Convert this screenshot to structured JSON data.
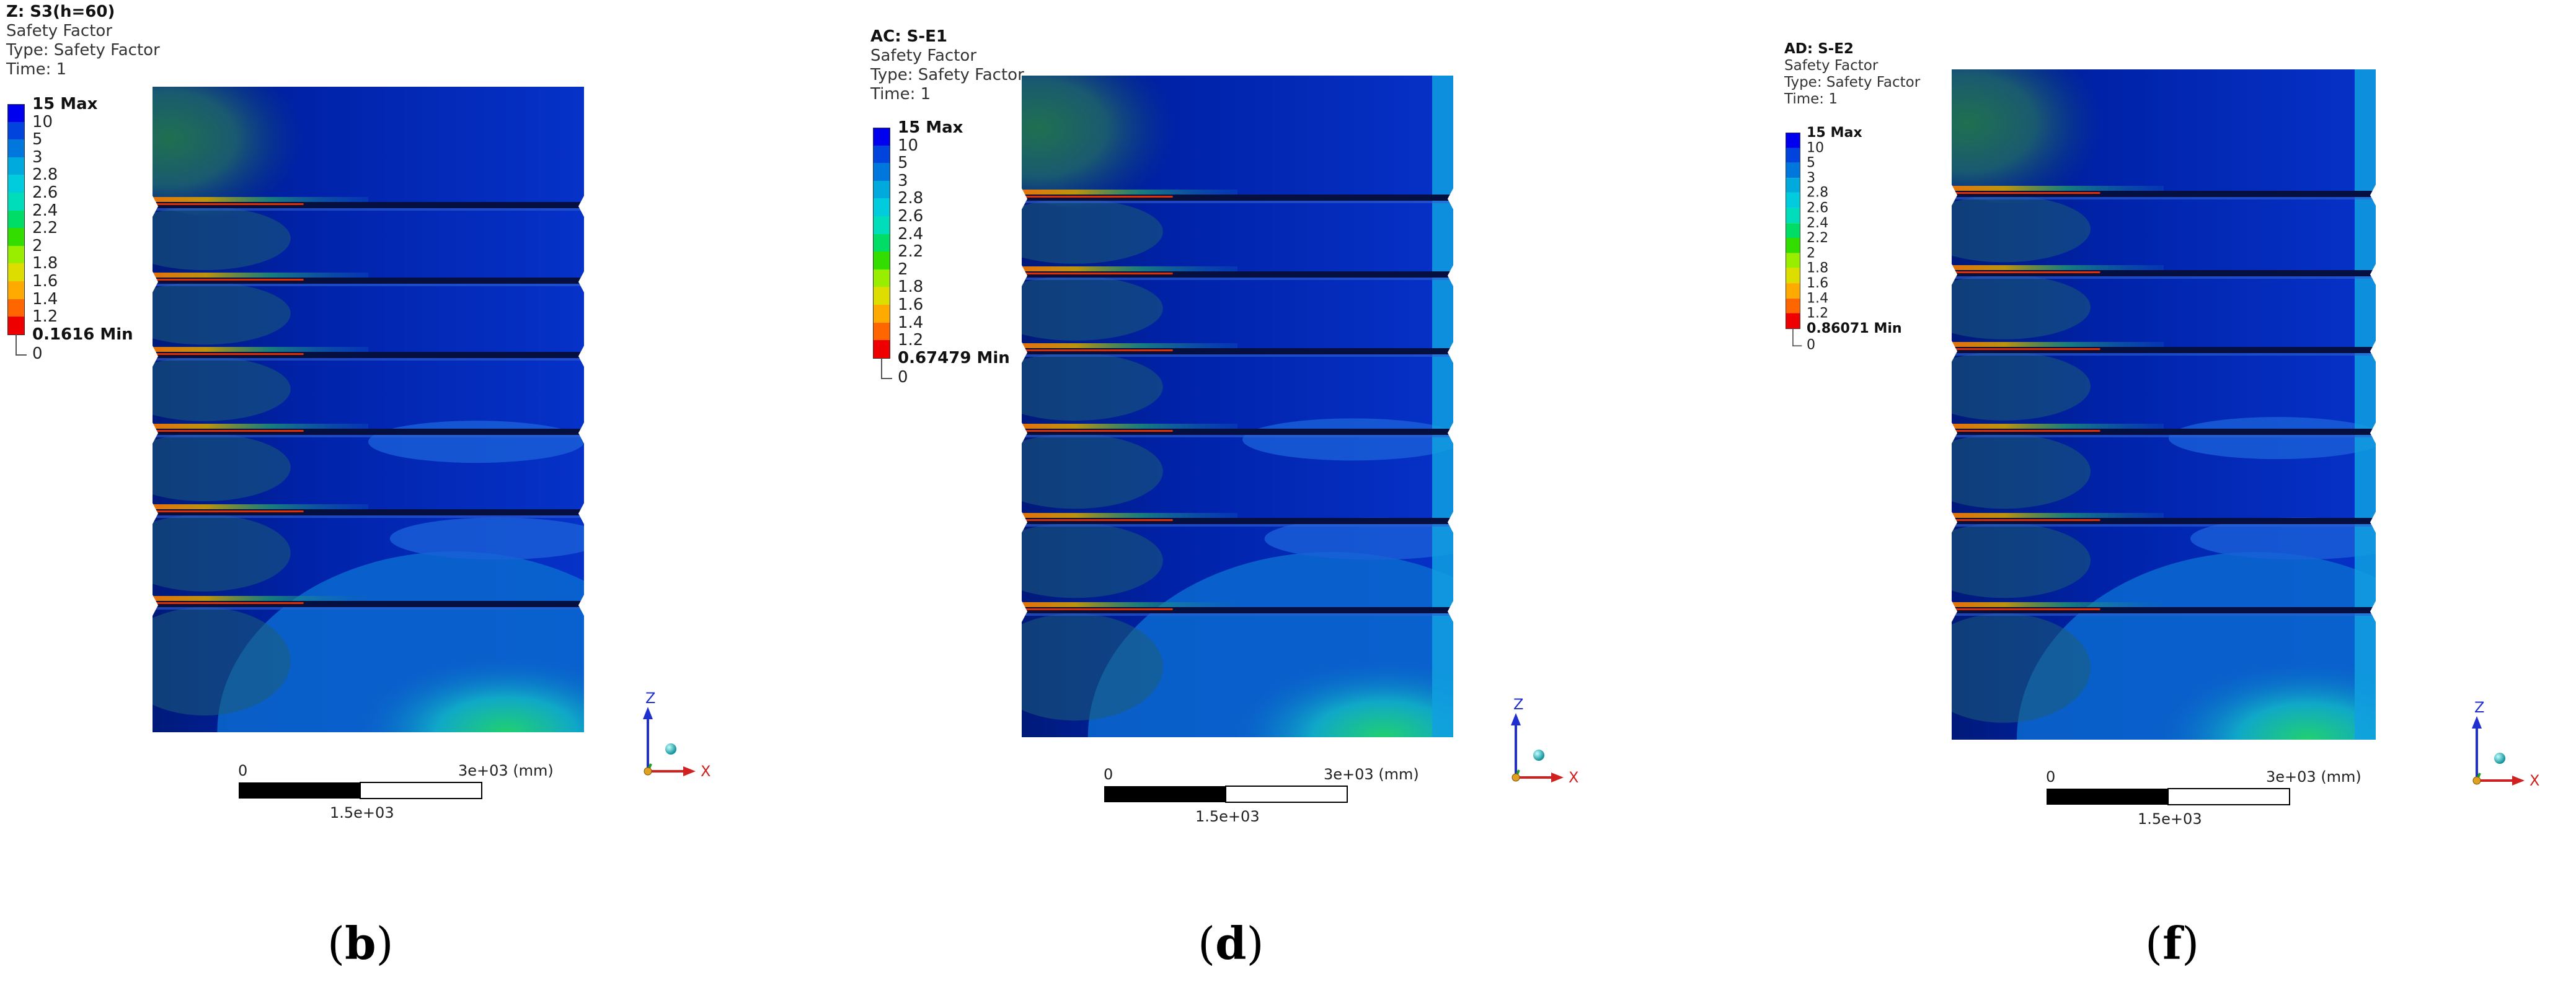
{
  "legend_colors": [
    "#0000ee",
    "#0044dd",
    "#0077dd",
    "#00aadd",
    "#00ccdd",
    "#00ddbb",
    "#00dd66",
    "#33dd00",
    "#99ee00",
    "#dddd00",
    "#ffaa00",
    "#ff6600",
    "#ee0000"
  ],
  "panels": [
    {
      "header": {
        "title": "Z: S3(h=60)",
        "line1": "Safety Factor",
        "line2": "Type: Safety Factor",
        "line3": "Time: 1"
      },
      "legend": {
        "max": "15 Max",
        "values": [
          "10",
          "5",
          "3",
          "2.8",
          "2.6",
          "2.4",
          "2.2",
          "2",
          "1.8",
          "1.6",
          "1.4",
          "1.2"
        ],
        "min": "0.1616 Min",
        "zero": "0"
      },
      "scale": {
        "left": "0",
        "right": "3e+03 (mm)",
        "mid": "1.5e+03"
      },
      "triad": {
        "z": "Z",
        "x": "X"
      },
      "caption": {
        "open": "(",
        "letter": "b",
        "close": ")"
      }
    },
    {
      "header": {
        "title": "AC: S-E1",
        "line1": "Safety Factor",
        "line2": "Type: Safety Factor",
        "line3": "Time: 1"
      },
      "legend": {
        "max": "15 Max",
        "values": [
          "10",
          "5",
          "3",
          "2.8",
          "2.6",
          "2.4",
          "2.2",
          "2",
          "1.8",
          "1.6",
          "1.4",
          "1.2"
        ],
        "min": "0.67479 Min",
        "zero": "0"
      },
      "scale": {
        "left": "0",
        "right": "3e+03 (mm)",
        "mid": "1.5e+03"
      },
      "triad": {
        "z": "Z",
        "x": "X"
      },
      "caption": {
        "open": "(",
        "letter": "d",
        "close": ")"
      }
    },
    {
      "header": {
        "title": "AD: S-E2",
        "line1": "Safety Factor",
        "line2": "Type: Safety Factor",
        "line3": "Time: 1"
      },
      "legend": {
        "max": "15 Max",
        "values": [
          "10",
          "5",
          "3",
          "2.8",
          "2.6",
          "2.4",
          "2.2",
          "2",
          "1.8",
          "1.6",
          "1.4",
          "1.2"
        ],
        "min": "0.86071 Min",
        "zero": "0"
      },
      "scale": {
        "left": "0",
        "right": "3e+03 (mm)",
        "mid": "1.5e+03"
      },
      "triad": {
        "z": "Z",
        "x": "X"
      },
      "caption": {
        "open": "(",
        "letter": "f",
        "close": ")"
      }
    }
  ]
}
